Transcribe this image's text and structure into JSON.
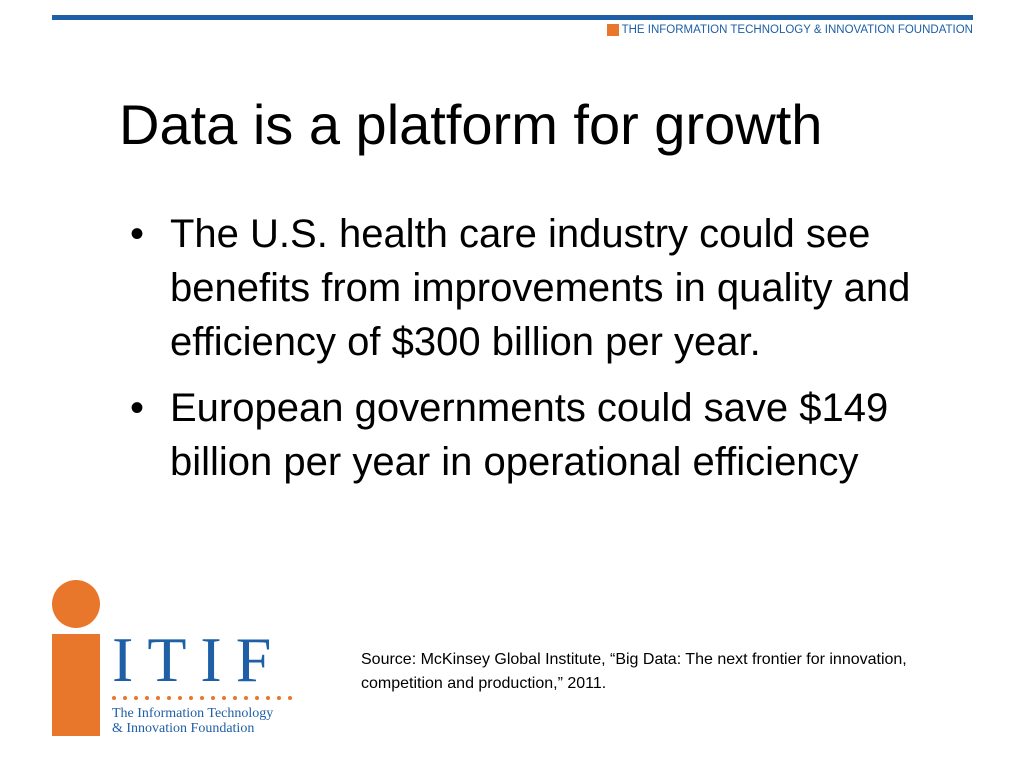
{
  "header": {
    "organization": "THE INFORMATION TECHNOLOGY & INNOVATION FOUNDATION"
  },
  "slide": {
    "title": "Data is a platform for growth",
    "bullets": [
      "The U.S. health care industry could see benefits from improvements in quality and efficiency of $300 billion per year.",
      "European governments could save $149 billion per year in operational efficiency"
    ],
    "source": "Source: McKinsey Global Institute, “Big Data: The next frontier for innovation, competition and production,” 2011."
  },
  "logo": {
    "mark": "ITIF",
    "subtitle_line1": "The Information Technology",
    "subtitle_line2": "& Innovation Foundation",
    "icon": "itif-logo-icon"
  },
  "colors": {
    "brand_blue": "#1f5fa6",
    "brand_orange": "#e8772b",
    "text": "#000000",
    "background": "#ffffff"
  }
}
